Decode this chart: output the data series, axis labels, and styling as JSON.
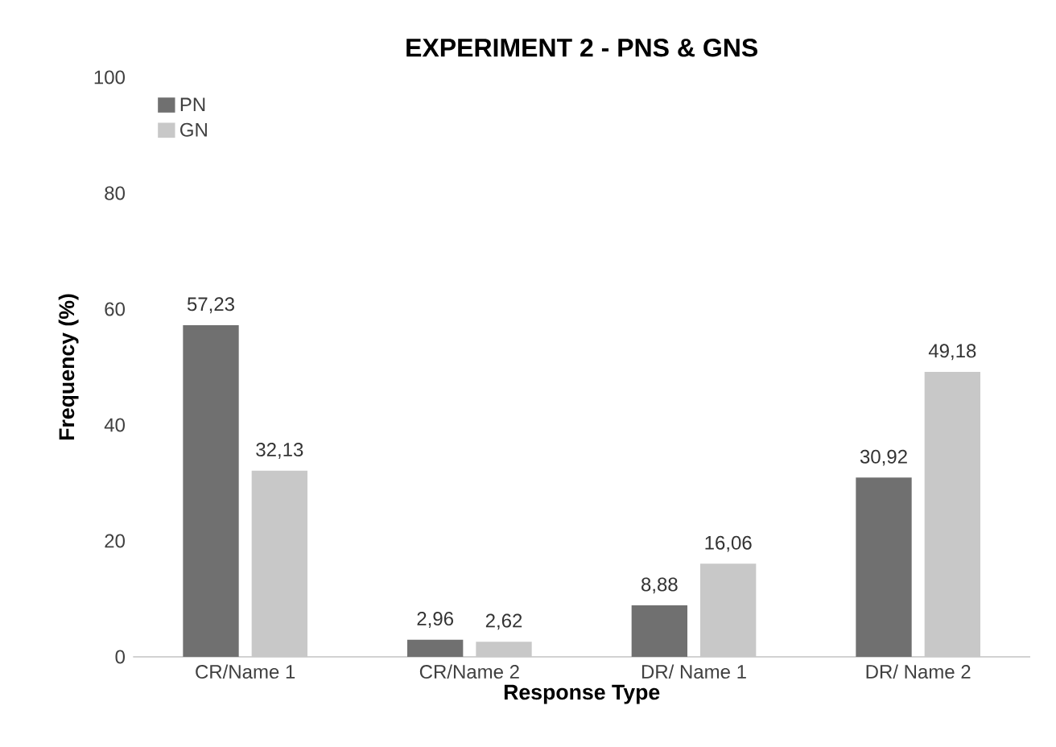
{
  "chart_data": {
    "type": "bar",
    "title": "EXPERIMENT 2 - PNS & GNS",
    "xlabel": "Response Type",
    "ylabel": "Frequency (%)",
    "categories": [
      "CR/Name 1",
      "CR/Name 2",
      "DR/ Name 1",
      "DR/ Name 2"
    ],
    "series": [
      {
        "name": "PN",
        "color": "#707070",
        "values": [
          57.23,
          2.96,
          8.88,
          30.92
        ],
        "value_labels": [
          "57,23",
          "2,96",
          "8,88",
          "30,92"
        ]
      },
      {
        "name": "GN",
        "color": "#c8c8c8",
        "values": [
          32.13,
          2.62,
          16.06,
          49.18
        ],
        "value_labels": [
          "32,13",
          "2,62",
          "16,06",
          "49,18"
        ]
      }
    ],
    "ylim": [
      0,
      100
    ],
    "yticks": [
      0,
      20,
      40,
      60,
      80,
      100
    ],
    "grid": false,
    "legend": "top left"
  }
}
